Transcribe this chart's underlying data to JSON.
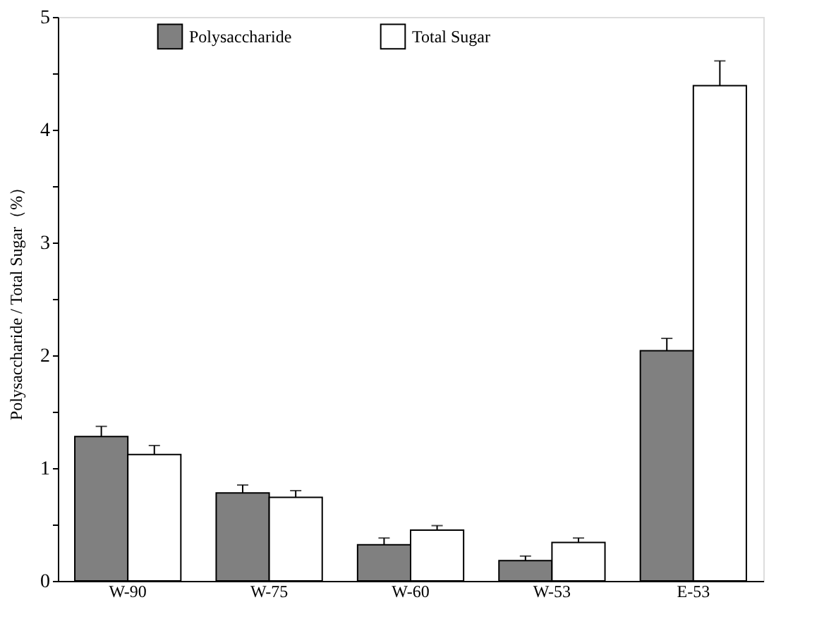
{
  "chart_data": {
    "type": "bar",
    "ylabel": "Polysaccharide / Total Sugar（%）",
    "categories": [
      "W-90",
      "W-75",
      "W-60",
      "W-53",
      "E-53"
    ],
    "series": [
      {
        "name": "Polysaccharide",
        "color": "#808080",
        "values": [
          1.28,
          0.78,
          0.32,
          0.18,
          2.04
        ],
        "errors": [
          0.09,
          0.07,
          0.06,
          0.04,
          0.11
        ]
      },
      {
        "name": "Total Sugar",
        "color": "#ffffff",
        "values": [
          1.12,
          0.74,
          0.45,
          0.34,
          4.39
        ],
        "errors": [
          0.08,
          0.06,
          0.04,
          0.04,
          0.22
        ]
      }
    ],
    "ylim": [
      0,
      5
    ],
    "yticks": [
      0,
      {
        "value": 0.5,
        "label": null
      },
      1,
      {
        "value": 1.5,
        "label": null
      },
      2,
      {
        "value": 2.5,
        "label": null
      },
      3,
      {
        "value": 3.5,
        "label": null
      },
      4,
      {
        "value": 4.5,
        "label": null
      },
      5
    ],
    "legend": "top",
    "grid": false
  }
}
